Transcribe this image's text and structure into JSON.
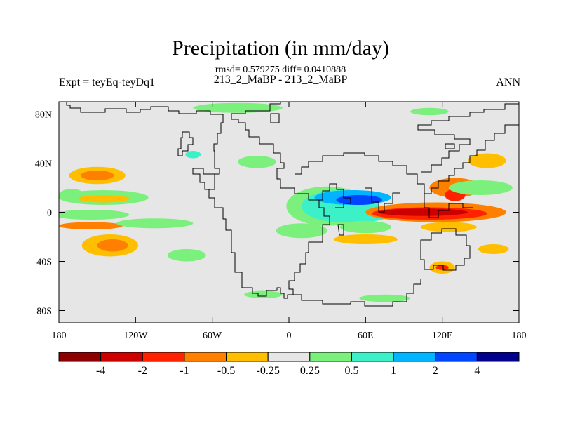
{
  "chart_data": {
    "type": "heatmap",
    "title": "Precipitation (in mm/day)",
    "stats_text": "rmsd= 0.579275 diff= 0.0410888",
    "subtitle": "213_2_MaBP - 213_2_MaBP",
    "left_label": "Expt = teyEq-teyDq1",
    "right_label": "ANN",
    "xlim": [
      -180,
      180
    ],
    "ylim": [
      -90,
      90
    ],
    "x_ticks": [
      {
        "value": -180,
        "label": "180"
      },
      {
        "value": -120,
        "label": "120W"
      },
      {
        "value": -60,
        "label": "60W"
      },
      {
        "value": 0,
        "label": "0"
      },
      {
        "value": 60,
        "label": "60E"
      },
      {
        "value": 120,
        "label": "120E"
      },
      {
        "value": 180,
        "label": "180"
      }
    ],
    "y_ticks": [
      {
        "value": 80,
        "label": "80N"
      },
      {
        "value": 40,
        "label": "40N"
      },
      {
        "value": 0,
        "label": "0"
      },
      {
        "value": -40,
        "label": "40S"
      },
      {
        "value": -80,
        "label": "80S"
      }
    ],
    "colorbar": {
      "colors": [
        "#8b0000",
        "#cd0000",
        "#ff2200",
        "#ff7f00",
        "#ffbf00",
        "#e6e6e6",
        "#7cf07c",
        "#3cf0c8",
        "#00b4ff",
        "#0046ff",
        "#00008b"
      ],
      "labels": [
        "-4",
        "-2",
        "-1",
        "-0.5",
        "-0.25",
        "0.25",
        "0.5",
        "1",
        "2",
        "4"
      ]
    },
    "anomalies": [
      {
        "lon": -150,
        "lat": 30,
        "rx": 22,
        "ry": 7,
        "value": -0.4
      },
      {
        "lon": -150,
        "lat": 30,
        "rx": 13,
        "ry": 4,
        "value": -0.7
      },
      {
        "lon": -170,
        "lat": 14,
        "rx": 10,
        "ry": 5,
        "value": 0.4
      },
      {
        "lon": -145,
        "lat": 12,
        "rx": 35,
        "ry": 6,
        "value": 0.4
      },
      {
        "lon": -145,
        "lat": 11,
        "rx": 20,
        "ry": 3,
        "value": -0.4
      },
      {
        "lon": -155,
        "lat": -2,
        "rx": 30,
        "ry": 4,
        "value": 0.4
      },
      {
        "lon": -155,
        "lat": -11,
        "rx": 25,
        "ry": 3,
        "value": -0.7
      },
      {
        "lon": -105,
        "lat": -9,
        "rx": 30,
        "ry": 4,
        "value": 0.4
      },
      {
        "lon": -140,
        "lat": -27,
        "rx": 22,
        "ry": 9,
        "value": -0.4
      },
      {
        "lon": -138,
        "lat": -27,
        "rx": 12,
        "ry": 5,
        "value": -0.7
      },
      {
        "lon": -80,
        "lat": -35,
        "rx": 15,
        "ry": 5,
        "value": 0.4
      },
      {
        "lon": -40,
        "lat": 85,
        "rx": 35,
        "ry": 4,
        "value": 0.4
      },
      {
        "lon": -25,
        "lat": 41,
        "rx": 15,
        "ry": 5,
        "value": 0.4
      },
      {
        "lon": -75,
        "lat": 47,
        "rx": 6,
        "ry": 3,
        "value": 0.8
      },
      {
        "lon": 30,
        "lat": 5,
        "rx": 32,
        "ry": 16,
        "value": 0.4
      },
      {
        "lon": 40,
        "lat": 5,
        "rx": 30,
        "ry": 13,
        "value": 0.8
      },
      {
        "lon": 50,
        "lat": 12,
        "rx": 30,
        "ry": 6,
        "value": 1.5
      },
      {
        "lon": 55,
        "lat": 10,
        "rx": 18,
        "ry": 4,
        "value": 3.0
      },
      {
        "lon": 55,
        "lat": -3,
        "rx": 22,
        "ry": 5,
        "value": 0.8
      },
      {
        "lon": 60,
        "lat": -12,
        "rx": 20,
        "ry": 5,
        "value": 0.4
      },
      {
        "lon": 60,
        "lat": -22,
        "rx": 25,
        "ry": 4,
        "value": -0.4
      },
      {
        "lon": 10,
        "lat": -15,
        "rx": 20,
        "ry": 6,
        "value": 0.4
      },
      {
        "lon": 115,
        "lat": 0,
        "rx": 55,
        "ry": 8,
        "value": -0.7
      },
      {
        "lon": 110,
        "lat": -1,
        "rx": 45,
        "ry": 5,
        "value": -1.5
      },
      {
        "lon": 105,
        "lat": 0,
        "rx": 35,
        "ry": 3,
        "value": -3.0
      },
      {
        "lon": 125,
        "lat": -12,
        "rx": 22,
        "ry": 4,
        "value": -0.4
      },
      {
        "lon": 130,
        "lat": 20,
        "rx": 20,
        "ry": 8,
        "value": -0.7
      },
      {
        "lon": 130,
        "lat": 14,
        "rx": 8,
        "ry": 5,
        "value": -1.5
      },
      {
        "lon": 155,
        "lat": 42,
        "rx": 15,
        "ry": 6,
        "value": -0.4
      },
      {
        "lon": 150,
        "lat": 20,
        "rx": 25,
        "ry": 6,
        "value": 0.4
      },
      {
        "lon": 110,
        "lat": 82,
        "rx": 15,
        "ry": 3,
        "value": 0.4
      },
      {
        "lon": 160,
        "lat": -30,
        "rx": 12,
        "ry": 4,
        "value": -0.4
      },
      {
        "lon": 120,
        "lat": -45,
        "rx": 10,
        "ry": 5,
        "value": -0.4
      },
      {
        "lon": 120,
        "lat": -45,
        "rx": 5,
        "ry": 2,
        "value": -1.5
      },
      {
        "lon": 75,
        "lat": -70,
        "rx": 20,
        "ry": 3,
        "value": 0.4
      },
      {
        "lon": -20,
        "lat": -67,
        "rx": 15,
        "ry": 3,
        "value": 0.4
      }
    ]
  }
}
